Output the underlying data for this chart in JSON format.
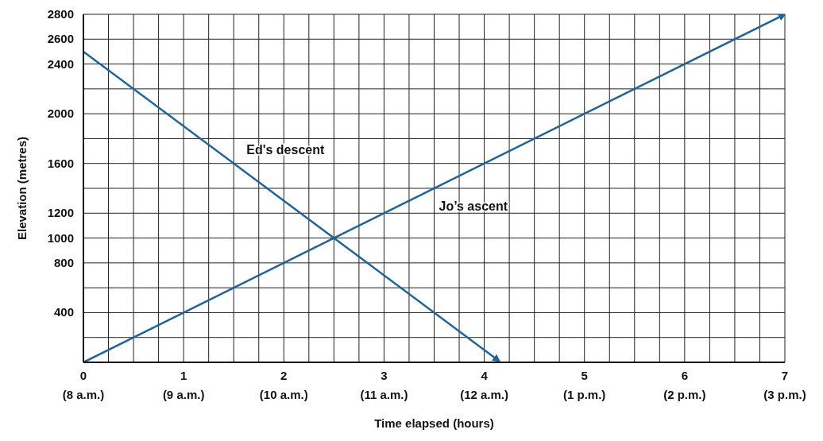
{
  "chart_data": {
    "type": "line",
    "xlabel": "Time elapsed (hours)",
    "ylabel": "Elevation (metres)",
    "xlim": [
      0,
      7
    ],
    "ylim": [
      0,
      2800
    ],
    "xticks": [
      0,
      {
        "value": 0.25,
        "label": null
      },
      {
        "value": 0.5,
        "label": null
      },
      {
        "value": 0.75,
        "label": null
      },
      1,
      {
        "value": 1.25,
        "label": null
      },
      {
        "value": 1.5,
        "label": null
      },
      {
        "value": 1.75,
        "label": null
      },
      2,
      {
        "value": 2.25,
        "label": null
      },
      {
        "value": 2.5,
        "label": null
      },
      {
        "value": 2.75,
        "label": null
      },
      3,
      {
        "value": 3.25,
        "label": null
      },
      {
        "value": 3.5,
        "label": null
      },
      {
        "value": 3.75,
        "label": null
      },
      4,
      {
        "value": 4.25,
        "label": null
      },
      {
        "value": 4.5,
        "label": null
      },
      {
        "value": 4.75,
        "label": null
      },
      5,
      {
        "value": 5.25,
        "label": null
      },
      {
        "value": 5.5,
        "label": null
      },
      {
        "value": 5.75,
        "label": null
      },
      6,
      {
        "value": 6.25,
        "label": null
      },
      {
        "value": 6.5,
        "label": null
      },
      {
        "value": 6.75,
        "label": null
      },
      7
    ],
    "annotations": [
      "(8 a.m.)",
      "(9 a.m.)",
      "(10 a.m.)",
      "(11 a.m.)",
      "(12 a.m.)",
      "(1 p.m.)",
      "(2 p.m.)",
      "(3 p.m.)"
    ],
    "yticks": [
      {
        "value": 0,
        "label": null
      },
      {
        "value": 200,
        "label": null
      },
      400,
      {
        "value": 600,
        "label": null
      },
      800,
      1000,
      1200,
      {
        "value": 1400,
        "label": null
      },
      1600,
      {
        "value": 1800,
        "label": null
      },
      2000,
      {
        "value": 2200,
        "label": null
      },
      2400,
      2600,
      2800
    ],
    "grid": true,
    "marker": "none",
    "line_style": "solid",
    "series": [
      {
        "name": "Ed's descent",
        "color": "#1a64a0",
        "x": [
          0,
          4.15
        ],
        "values": [
          2500,
          10
        ]
      },
      {
        "name": "Jo’s ascent",
        "color": "#1a64a0",
        "x": [
          0,
          7
        ],
        "values": [
          0,
          2800
        ]
      }
    ]
  }
}
